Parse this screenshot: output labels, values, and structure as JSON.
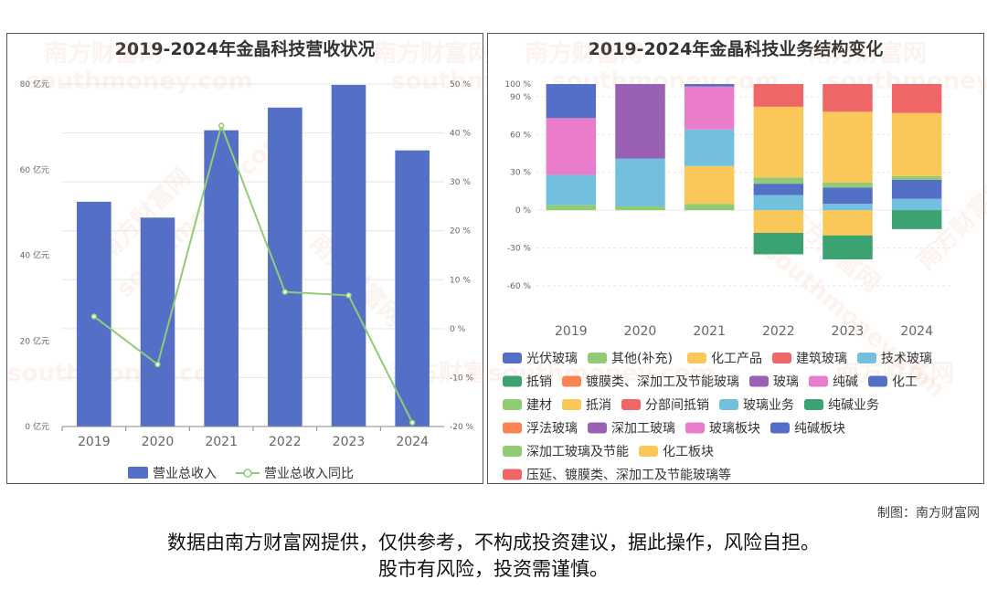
{
  "chart_data": [
    {
      "type": "bar+line",
      "title": "2019-2024年金晶科技营收状况",
      "categories": [
        "2019",
        "2020",
        "2021",
        "2022",
        "2023",
        "2024"
      ],
      "series": [
        {
          "name": "营业总收入",
          "type": "bar",
          "axis": "left",
          "values": [
            52.5,
            48.8,
            69.2,
            74.5,
            79.8,
            64.5
          ],
          "color": "#5470c6"
        },
        {
          "name": "营业总收入同比",
          "type": "line",
          "axis": "right",
          "values": [
            2.5,
            -7.3,
            41.5,
            7.5,
            6.8,
            -19.2
          ],
          "color": "#91cc75"
        }
      ],
      "ylim_left": [
        0,
        80
      ],
      "yticks_left": [
        "0 亿元",
        "20 亿元",
        "40 亿元",
        "60 亿元",
        "80 亿元"
      ],
      "ylim_right": [
        -20,
        50
      ],
      "yticks_right": [
        "-20 %",
        "-10 %",
        "0 %",
        "10 %",
        "20 %",
        "30 %",
        "40 %",
        "50 %"
      ],
      "legend": [
        "营业总收入",
        "营业总收入同比"
      ],
      "legend_position": "bottom"
    },
    {
      "type": "stacked-bar",
      "title": "2019-2024年金晶科技业务结构变化",
      "categories": [
        "2019",
        "2020",
        "2021",
        "2022",
        "2023",
        "2024"
      ],
      "ylim": [
        -60,
        100
      ],
      "yticks": [
        "-60 %",
        "-30 %",
        "0 %",
        "30 %",
        "60 %",
        "90 %",
        "100 %"
      ],
      "series": [
        {
          "name": "光伏玻璃",
          "color": "#5470c6",
          "values": [
            0,
            0,
            0,
            0,
            0,
            0
          ]
        },
        {
          "name": "其他(补充)",
          "color": "#91cc75",
          "values": [
            4,
            3,
            5,
            0,
            0,
            0
          ]
        },
        {
          "name": "化工产品",
          "color": "#fac858",
          "values": [
            0,
            0,
            30,
            0,
            0,
            0
          ]
        },
        {
          "name": "建筑玻璃",
          "color": "#ee6666",
          "values": [
            0,
            0,
            0,
            0,
            0,
            0
          ]
        },
        {
          "name": "技术玻璃",
          "color": "#73c0de",
          "values": [
            24,
            38,
            29,
            0,
            0,
            0
          ]
        },
        {
          "name": "抵销",
          "color": "#3ba272",
          "values": [
            0,
            0,
            0,
            0,
            0,
            0
          ]
        },
        {
          "name": "镀膜类、深加工及节能玻璃",
          "color": "#fc8452",
          "values": [
            0,
            0,
            0,
            0,
            0,
            0
          ]
        },
        {
          "name": "玻璃",
          "color": "#9a60b4",
          "values": [
            0,
            59,
            0,
            0,
            0,
            0
          ]
        },
        {
          "name": "纯碱",
          "color": "#ea7ccc",
          "values": [
            45,
            0,
            34,
            0,
            0,
            0
          ]
        },
        {
          "name": "化工",
          "color": "#5470c6",
          "values": [
            27,
            0,
            2,
            0,
            0,
            0
          ]
        },
        {
          "name": "建材",
          "color": "#91cc75",
          "values": [
            0,
            0,
            0,
            0,
            0,
            0
          ]
        },
        {
          "name": "抵消",
          "color": "#fac858",
          "values": [
            0,
            0,
            0,
            -18,
            -20,
            0
          ]
        },
        {
          "name": "分部间抵销",
          "color": "#ee6666",
          "values": [
            0,
            0,
            0,
            0,
            0,
            0
          ]
        },
        {
          "name": "玻璃业务",
          "color": "#73c0de",
          "values": [
            0,
            0,
            0,
            12,
            5,
            9
          ]
        },
        {
          "name": "纯碱业务",
          "color": "#3ba272",
          "values": [
            0,
            0,
            0,
            -17,
            -19,
            -15
          ]
        },
        {
          "name": "浮法玻璃",
          "color": "#fc8452",
          "values": [
            0,
            0,
            0,
            0,
            0,
            0
          ]
        },
        {
          "name": "深加工玻璃",
          "color": "#9a60b4",
          "values": [
            0,
            0,
            0,
            0,
            0,
            0
          ]
        },
        {
          "name": "玻璃板块",
          "color": "#ea7ccc",
          "values": [
            0,
            0,
            0,
            0,
            0,
            0
          ]
        },
        {
          "name": "纯碱板块",
          "color": "#5470c6",
          "values": [
            0,
            0,
            0,
            9,
            13,
            15
          ]
        },
        {
          "name": "深加工玻璃及节能",
          "color": "#91cc75",
          "values": [
            0,
            0,
            0,
            5,
            4,
            3
          ]
        },
        {
          "name": "化工板块",
          "color": "#fac858",
          "values": [
            0,
            0,
            0,
            56,
            56,
            50
          ]
        },
        {
          "name": "压延、镀膜类、深加工及节能玻璃等",
          "color": "#ee6666",
          "values": [
            0,
            0,
            0,
            18,
            22,
            23
          ]
        }
      ],
      "legend_position": "bottom"
    }
  ],
  "watermark": {
    "cn": "南方财富网",
    "en": "southmoney.com"
  },
  "footer": {
    "credit": "制图：南方财富网",
    "disclaimer_line1": "数据由南方财富网提供，仅供参考，不构成投资建议，据此操作，风险自担。",
    "disclaimer_line2": "股市有风险，投资需谨慎。"
  }
}
